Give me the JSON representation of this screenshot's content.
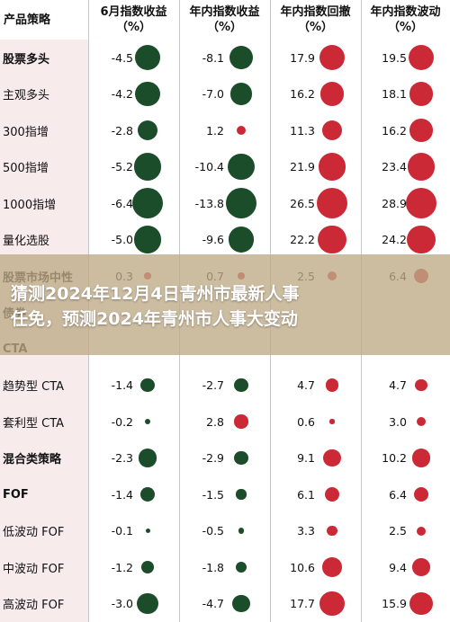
{
  "colors": {
    "positive": "#cc2936",
    "negative": "#1b4d2b",
    "label_bg": "#f7ebeb"
  },
  "headers": [
    {
      "line1": "产品策略",
      "line2": ""
    },
    {
      "line1": "6月指数收益",
      "line2": "（%）"
    },
    {
      "line1": "年内指数收益",
      "line2": "（%）"
    },
    {
      "line1": "年内指数回撤",
      "line2": "（%）"
    },
    {
      "line1": "年内指数波动",
      "line2": "（%）"
    }
  ],
  "rows": [
    {
      "label": "股票多头",
      "bold": true,
      "values": [
        "-4.5",
        "-8.1",
        "17.9",
        "19.5"
      ]
    },
    {
      "label": "主观多头",
      "bold": false,
      "values": [
        "-4.2",
        "-7.0",
        "16.2",
        "18.1"
      ]
    },
    {
      "label": "300指增",
      "bold": false,
      "values": [
        "-2.8",
        "1.2",
        "11.3",
        "16.2"
      ]
    },
    {
      "label": "500指增",
      "bold": false,
      "values": [
        "-5.2",
        "-10.4",
        "21.9",
        "23.4"
      ]
    },
    {
      "label": "1000指增",
      "bold": false,
      "values": [
        "-6.4",
        "-13.8",
        "26.5",
        "28.9"
      ]
    },
    {
      "label": "量化选股",
      "bold": false,
      "values": [
        "-5.0",
        "-9.6",
        "22.2",
        "24.2"
      ]
    },
    {
      "label": "股票市场中性",
      "bold": true,
      "values": [
        "0.3",
        "0.7",
        "2.5",
        "6.4"
      ]
    },
    {
      "label": "债券",
      "bold": true,
      "values": [
        "",
        "",
        "",
        ""
      ]
    },
    {
      "label": "CTA",
      "bold": true,
      "values": [
        "",
        "",
        "",
        ""
      ]
    },
    {
      "label": "趋势型 CTA",
      "bold": false,
      "values": [
        "-1.4",
        "-2.7",
        "4.7",
        "4.7"
      ]
    },
    {
      "label": "套利型 CTA",
      "bold": false,
      "values": [
        "-0.2",
        "2.8",
        "0.6",
        "3.0"
      ]
    },
    {
      "label": "混合类策略",
      "bold": true,
      "values": [
        "-2.3",
        "-2.9",
        "9.1",
        "10.2"
      ]
    },
    {
      "label": "FOF",
      "bold": true,
      "values": [
        "-1.4",
        "-1.5",
        "6.1",
        "6.4"
      ]
    },
    {
      "label": "低波动 FOF",
      "bold": false,
      "values": [
        "-0.1",
        "-0.5",
        "3.3",
        "2.5"
      ]
    },
    {
      "label": "中波动 FOF",
      "bold": false,
      "values": [
        "-1.2",
        "-1.8",
        "10.6",
        "9.4"
      ]
    },
    {
      "label": "高波动 FOF",
      "bold": false,
      "values": [
        "-3.0",
        "-4.7",
        "17.7",
        "15.9"
      ]
    }
  ],
  "overlay": {
    "line1": "猜测2024年12月4日青州市最新人事",
    "line2": "任免，预测2024年青州市人事大变动"
  }
}
